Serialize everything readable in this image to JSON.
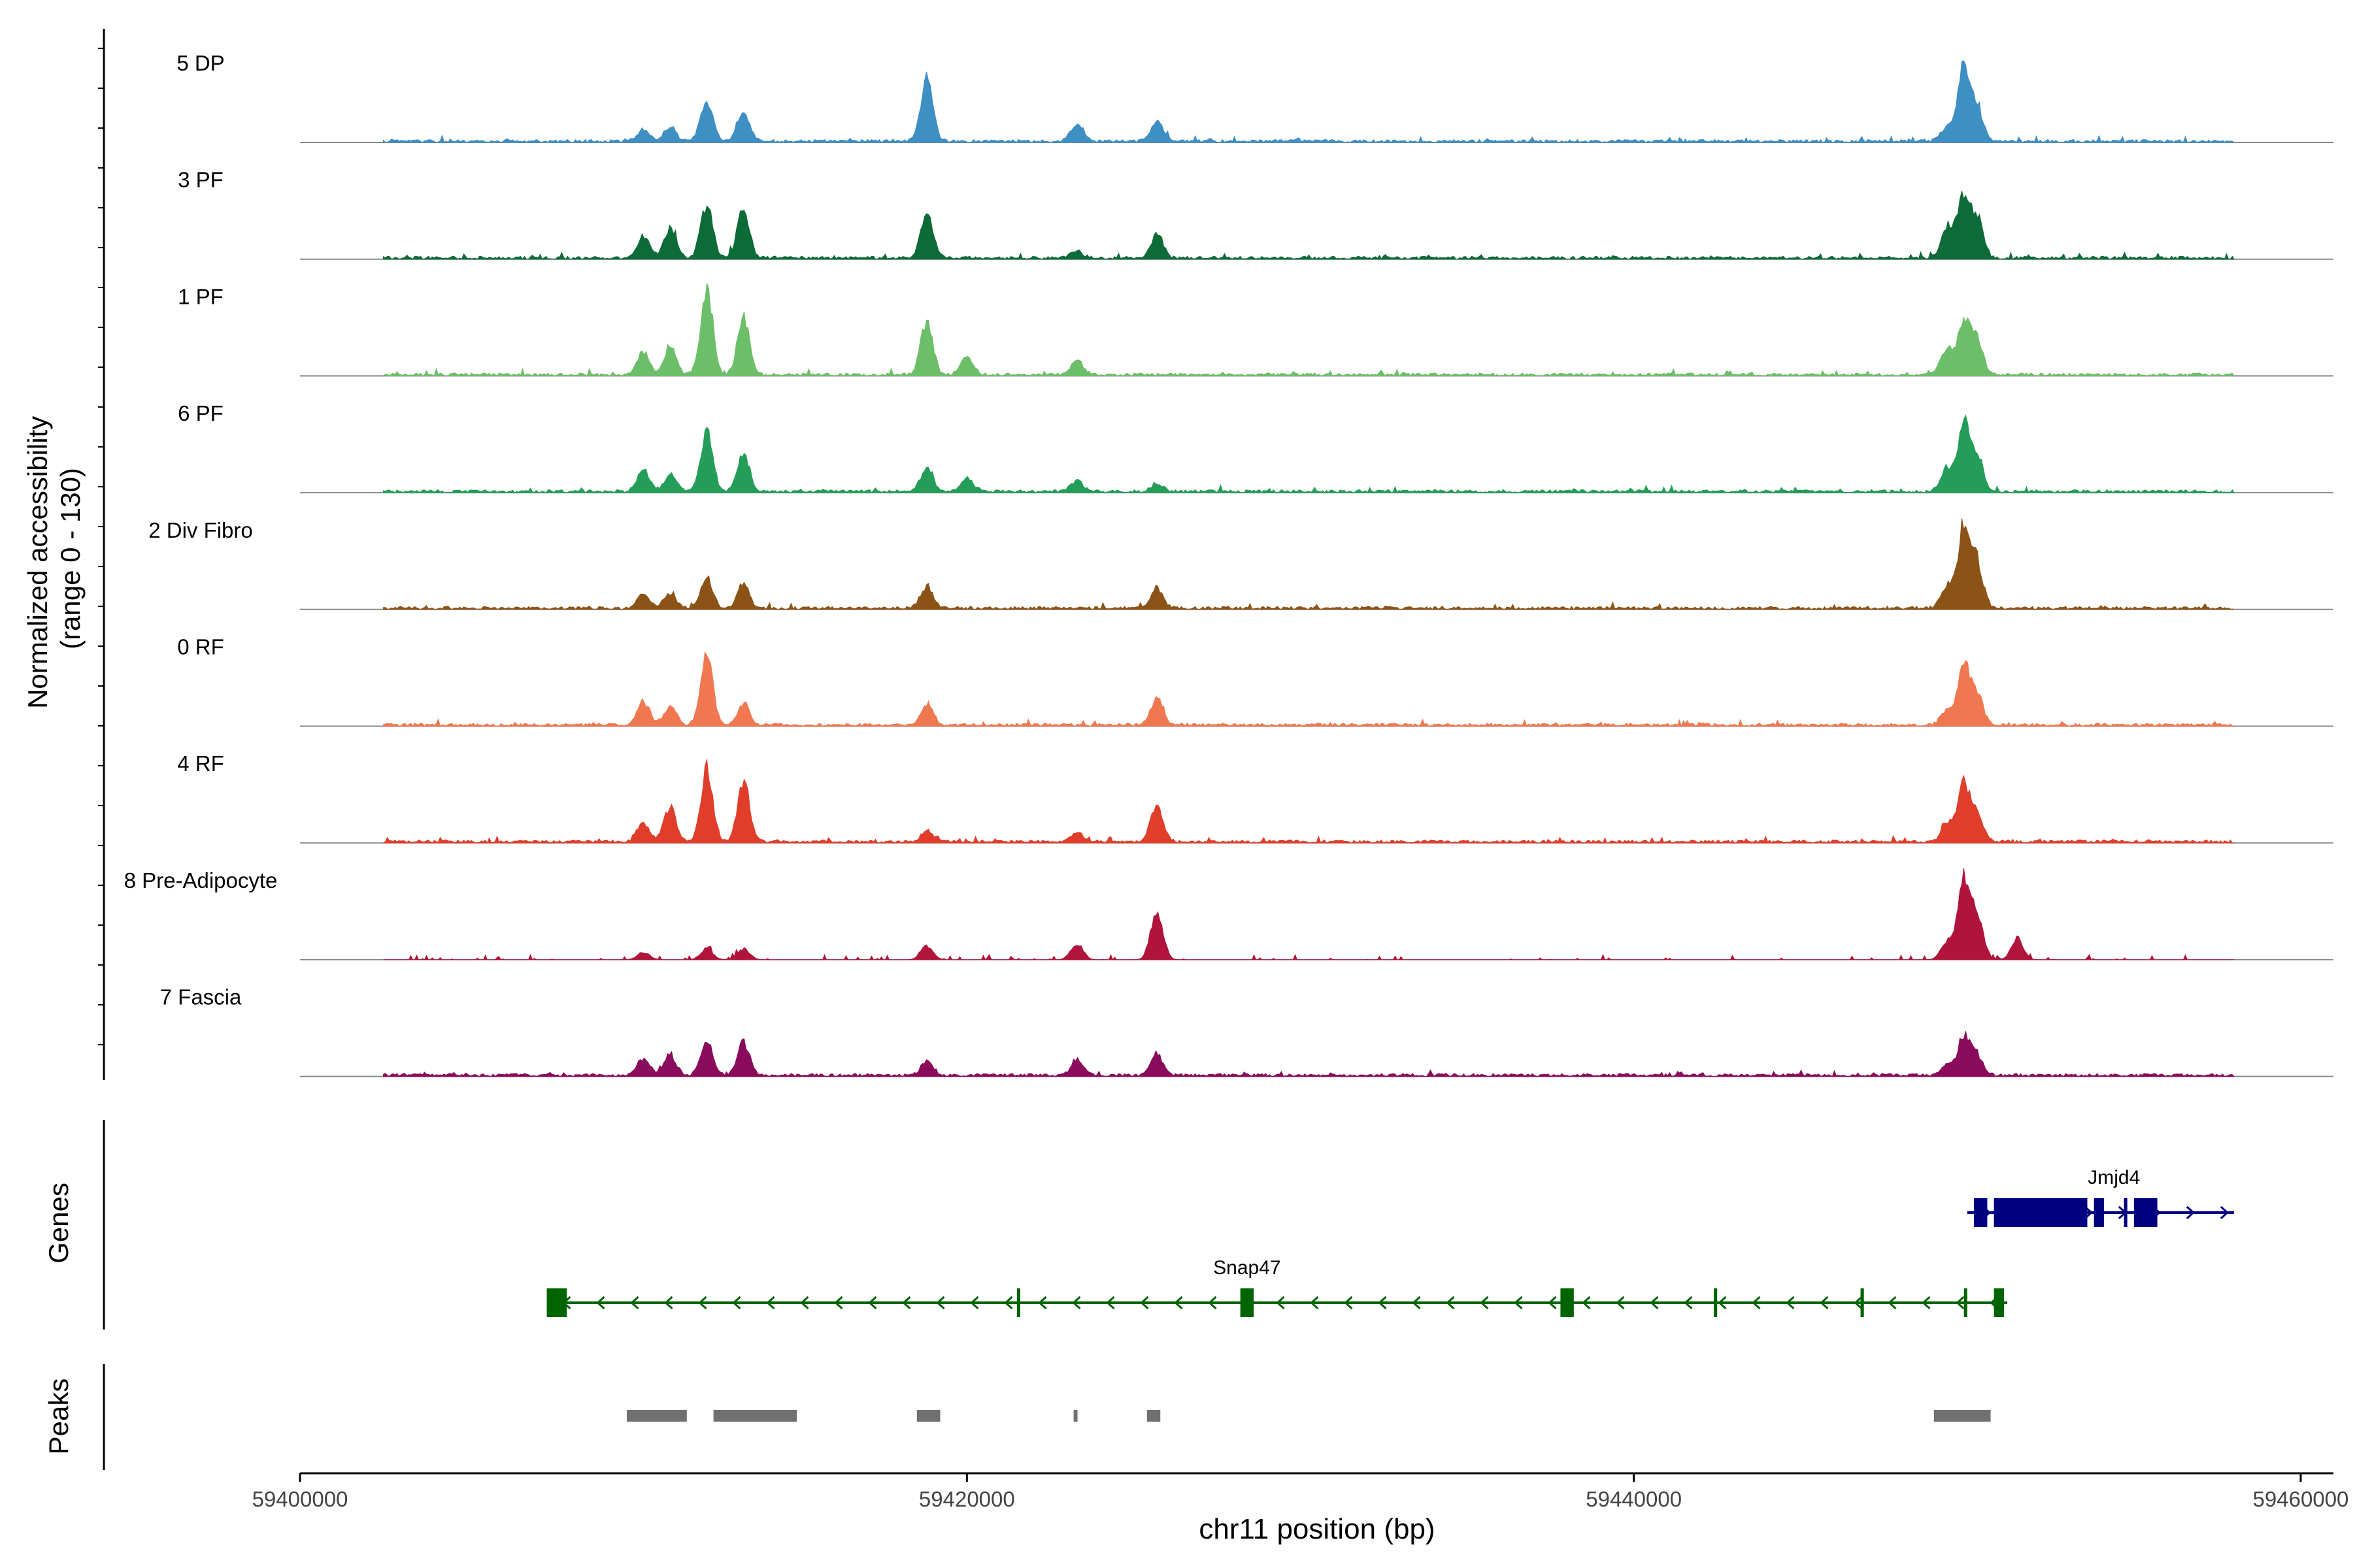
{
  "chart_data": {
    "type": "area",
    "ylabel_line1": "Normalized accessibility",
    "ylabel_line2": "(range 0 - 130)",
    "y_range": [
      0,
      130
    ],
    "xlabel": "chr11 position (bp)",
    "x_range": [
      59400000,
      59460000
    ],
    "x_ticks": [
      59400000,
      59420000,
      59440000,
      59460000
    ],
    "x_tick_labels": [
      "59400000",
      "59420000",
      "59440000",
      "59460000"
    ],
    "peak_centers": [
      59411100,
      59412200,
      59413300,
      59418800,
      59419900,
      59423300,
      59425700,
      59449400,
      59449900,
      59450300
    ],
    "tracks": [
      {
        "name": "5 DP",
        "color": "#3D8FC4",
        "x": [
          59410300,
          59411100,
          59412200,
          59413300,
          59418800,
          59423300,
          59425700,
          59449400,
          59449900,
          59450300
        ],
        "y": [
          15,
          20,
          58,
          40,
          85,
          22,
          25,
          20,
          95,
          45
        ]
      },
      {
        "name": "3 PF",
        "color": "#0C6B37",
        "x": [
          59410300,
          59411100,
          59412200,
          59413300,
          59418800,
          59423300,
          59425700,
          59449400,
          59449900,
          59450300
        ],
        "y": [
          30,
          40,
          72,
          68,
          58,
          10,
          32,
          40,
          85,
          50
        ]
      },
      {
        "name": "1 PF",
        "color": "#6CBF68",
        "x": [
          59410300,
          59411100,
          59412200,
          59413300,
          59418800,
          59420000,
          59423300,
          59449400,
          59449900,
          59450300
        ],
        "y": [
          30,
          35,
          118,
          75,
          72,
          25,
          20,
          35,
          72,
          45
        ]
      },
      {
        "name": "6 PF",
        "color": "#239D57",
        "x": [
          59410300,
          59411100,
          59412200,
          59413300,
          59418800,
          59420000,
          59423300,
          59425700,
          59449400,
          59449900,
          59450300
        ],
        "y": [
          28,
          22,
          80,
          50,
          30,
          18,
          15,
          10,
          30,
          88,
          45
        ]
      },
      {
        "name": "2 Div Fibro",
        "color": "#8B5316",
        "x": [
          59410300,
          59411100,
          59412200,
          59413300,
          59418800,
          59425700,
          59449400,
          59449900,
          59450300
        ],
        "y": [
          20,
          18,
          40,
          32,
          30,
          28,
          30,
          110,
          60
        ]
      },
      {
        "name": "0 RF",
        "color": "#F07850",
        "x": [
          59410300,
          59411100,
          59412200,
          59413300,
          59418800,
          59425700,
          59449400,
          59449900,
          59450300
        ],
        "y": [
          30,
          25,
          95,
          30,
          28,
          38,
          20,
          80,
          40
        ]
      },
      {
        "name": "4 RF",
        "color": "#E03D2B",
        "x": [
          59410300,
          59411100,
          59412200,
          59413300,
          59418800,
          59423300,
          59425700,
          59449400,
          59449900,
          59450300
        ],
        "y": [
          25,
          45,
          98,
          80,
          15,
          12,
          52,
          25,
          75,
          35
        ]
      },
      {
        "name": "8 Pre-Adipocyte",
        "color": "#B0133B",
        "x": [
          59410300,
          59412200,
          59413300,
          59418800,
          59423300,
          59425700,
          59449400,
          59449900,
          59450300,
          59451500
        ],
        "y": [
          10,
          15,
          15,
          18,
          22,
          65,
          25,
          105,
          55,
          28
        ]
      },
      {
        "name": "7 Fascia",
        "color": "#8A0B5B",
        "x": [
          59410300,
          59411100,
          59412200,
          59413300,
          59418800,
          59423300,
          59425700,
          59449400,
          59449900,
          59450300
        ],
        "y": [
          22,
          28,
          45,
          45,
          20,
          20,
          30,
          15,
          52,
          25
        ]
      }
    ],
    "genes_label": "Genes",
    "genes": [
      {
        "name": "Jmjd4",
        "color": "#000080",
        "strand": "+",
        "start": 59450000,
        "end": 59458000,
        "exons": [
          [
            59450200,
            59450600
          ],
          [
            59450800,
            59453600
          ],
          [
            59453800,
            59454100
          ],
          [
            59454700,
            59454800
          ],
          [
            59455000,
            59455700
          ]
        ]
      },
      {
        "name": "Snap47",
        "color": "#006400",
        "strand": "-",
        "start": 59407400,
        "end": 59451200,
        "exons": [
          [
            59407400,
            59408000
          ],
          [
            59421500,
            59421600
          ],
          [
            59428200,
            59428600
          ],
          [
            59437800,
            59438200
          ],
          [
            59442400,
            59442500
          ],
          [
            59446800,
            59446900
          ],
          [
            59449900,
            59450000
          ],
          [
            59450800,
            59451100
          ]
        ]
      }
    ],
    "peaks_label": "Peaks",
    "peaks": [
      [
        59409800,
        59411600
      ],
      [
        59412400,
        59414900
      ],
      [
        59418500,
        59419200
      ],
      [
        59423200,
        59423300
      ],
      [
        59425400,
        59425800
      ],
      [
        59449000,
        59450700
      ]
    ]
  }
}
